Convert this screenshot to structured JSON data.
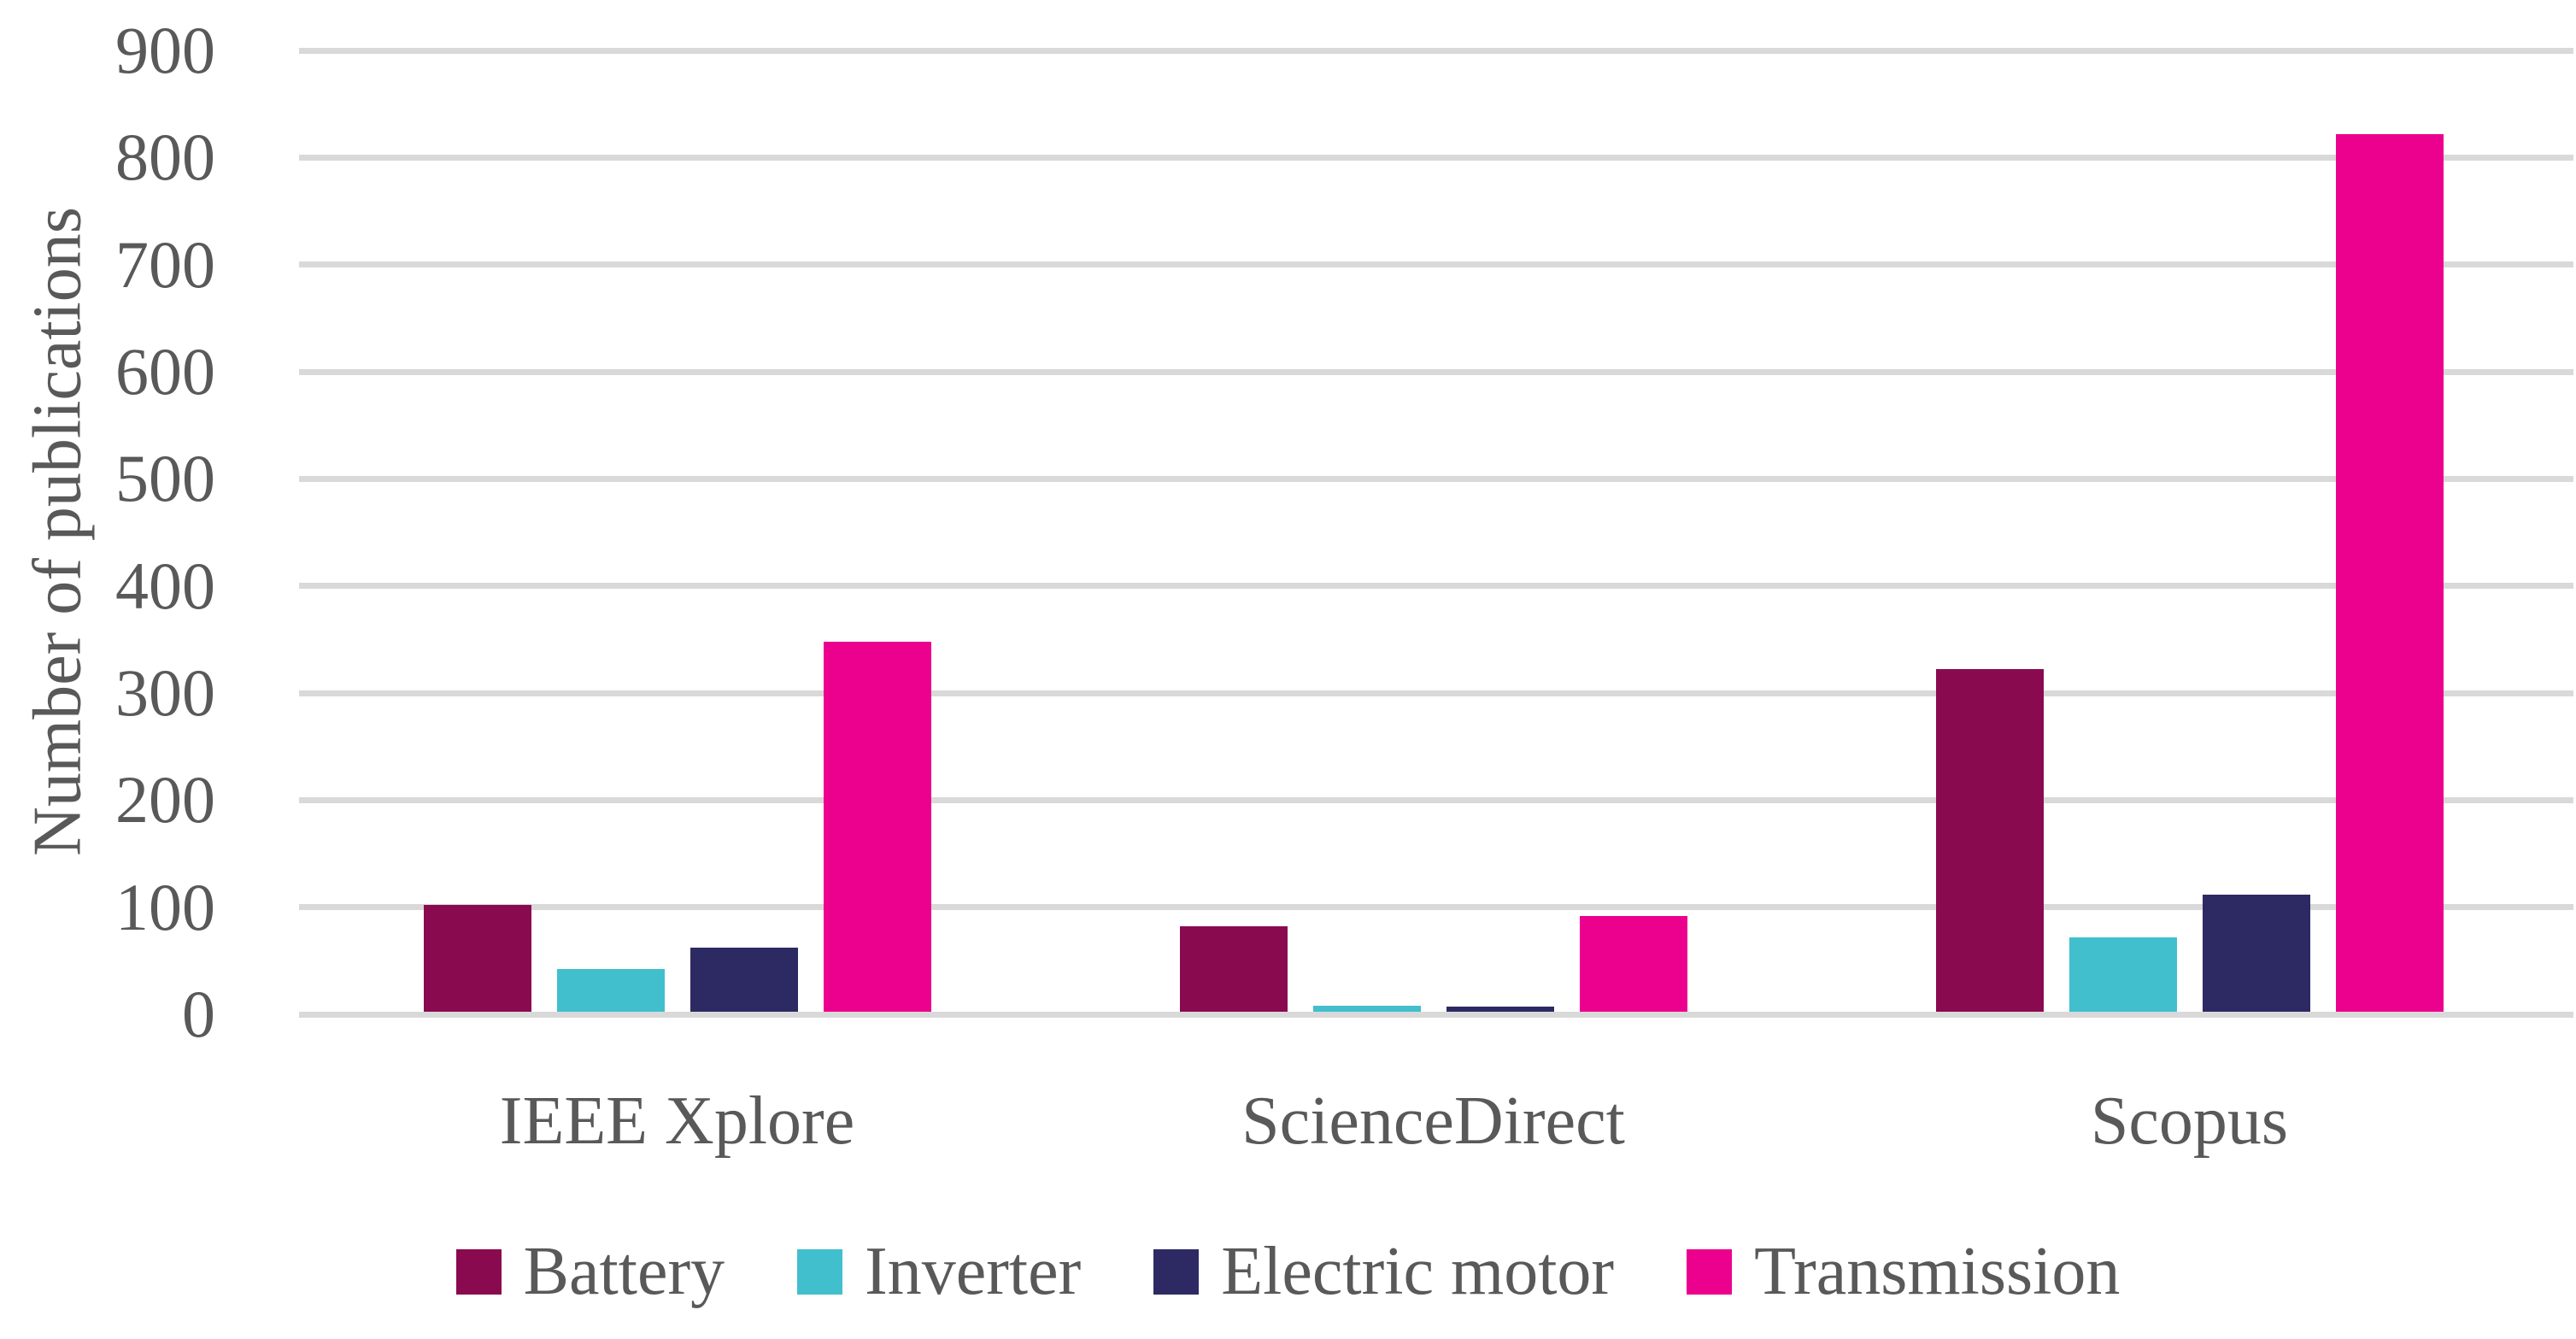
{
  "chart_data": {
    "type": "bar",
    "categories": [
      "IEEE Xplore",
      "ScienceDirect",
      "Scopus"
    ],
    "series": [
      {
        "name": "Battery",
        "color": "#8A0A50",
        "values": [
          102,
          82,
          322
        ]
      },
      {
        "name": "Inverter",
        "color": "#41BFCD",
        "values": [
          42,
          8,
          72
        ]
      },
      {
        "name": "Electric motor",
        "color": "#2D2A63",
        "values": [
          62,
          7,
          112
        ]
      },
      {
        "name": "Transmission",
        "color": "#EC018E",
        "values": [
          348,
          92,
          822
        ]
      }
    ],
    "title": "",
    "xlabel": "",
    "ylabel": "Number of publications",
    "ylim": [
      0,
      900
    ],
    "ytick_step": 100,
    "grid": true,
    "legend_position": "bottom"
  },
  "colors": {
    "text": "#595959",
    "gridline": "#D9D9D9",
    "background": "#FFFFFF"
  }
}
